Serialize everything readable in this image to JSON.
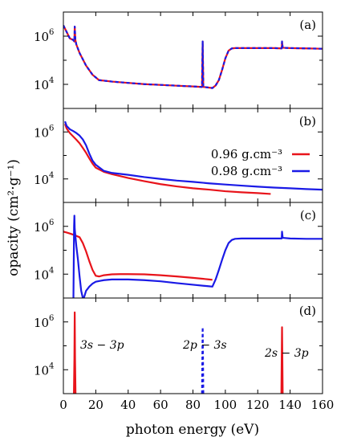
{
  "colors": {
    "red": "#e8141b",
    "blue": "#1a1ae6",
    "axis": "#000000"
  },
  "figure": {
    "ylabel": "opacity (cm²·g⁻¹)",
    "xlabel": "photon energy (eV)",
    "panel_labels": [
      "(a)",
      "(b)",
      "(c)",
      "(d)"
    ],
    "ytick_labels": [
      "10",
      "10"
    ],
    "ytick_exponents": [
      "6",
      "4"
    ],
    "xtick_labels": [
      "0",
      "20",
      "40",
      "60",
      "80",
      "100",
      "120",
      "140",
      "160"
    ],
    "legend": [
      "0.96 g.cm⁻³",
      "0.98 g.cm⁻³"
    ],
    "annotations": [
      "3s − 3p",
      "2p − 3s",
      "2s − 3p"
    ]
  },
  "chart_data": [
    {
      "type": "line",
      "panel": "(a)",
      "yscale": "log",
      "xlim": [
        0,
        160
      ],
      "ylim": [
        1000,
        10000000
      ],
      "grid": false,
      "note": "both densities overlap (red solid with blue dashed overlay)",
      "series": [
        {
          "name": "0.96 g.cm⁻³",
          "color": "red",
          "dashed": false,
          "x": [
            0,
            2,
            4,
            6,
            6.8,
            7,
            7.4,
            8,
            10,
            14,
            18,
            22,
            30,
            40,
            50,
            60,
            70,
            80,
            85.6,
            86,
            86.4,
            88,
            92,
            94,
            96,
            98,
            100,
            102,
            104,
            106,
            110,
            120,
            130,
            134.8,
            135,
            135.4,
            140,
            150,
            160
          ],
          "y": [
            2800000,
            1500000,
            800000,
            700000,
            600000,
            2500000,
            700000,
            450000,
            200000,
            60000,
            25000,
            15000,
            13000,
            11500,
            10200,
            9500,
            8800,
            8200,
            7800,
            600000,
            7800,
            7600,
            7000,
            9000,
            15000,
            40000,
            120000,
            250000,
            310000,
            320000,
            320000,
            320000,
            320000,
            310000,
            600000,
            330000,
            320000,
            310000,
            300000
          ]
        },
        {
          "name": "0.98 g.cm⁻³",
          "color": "blue",
          "dashed": true,
          "x": [
            0,
            2,
            4,
            6,
            6.8,
            7,
            7.4,
            8,
            10,
            14,
            18,
            22,
            30,
            40,
            50,
            60,
            70,
            80,
            85.6,
            86,
            86.4,
            88,
            92,
            94,
            96,
            98,
            100,
            102,
            104,
            106,
            110,
            120,
            130,
            134.8,
            135,
            135.4,
            140,
            150,
            160
          ],
          "y": [
            2800000,
            1500000,
            800000,
            700000,
            600000,
            2500000,
            700000,
            450000,
            200000,
            60000,
            25000,
            15000,
            13000,
            11500,
            10200,
            9500,
            8800,
            8200,
            7800,
            600000,
            7800,
            7600,
            7000,
            9000,
            15000,
            40000,
            120000,
            250000,
            310000,
            320000,
            320000,
            320000,
            320000,
            310000,
            600000,
            330000,
            320000,
            310000,
            300000
          ]
        }
      ]
    },
    {
      "type": "line",
      "panel": "(b)",
      "yscale": "log",
      "xlim": [
        0,
        160
      ],
      "ylim": [
        1000,
        10000000
      ],
      "grid": false,
      "legend_position": "right",
      "series": [
        {
          "name": "0.96 g.cm⁻³",
          "color": "red",
          "dashed": false,
          "x": [
            1,
            2,
            4,
            6,
            8,
            10,
            12,
            14,
            16,
            18,
            20,
            25,
            30,
            40,
            50,
            60,
            70,
            80,
            90,
            100,
            110,
            120,
            128
          ],
          "y": [
            2200000,
            1400000,
            900000,
            650000,
            470000,
            330000,
            210000,
            130000,
            75000,
            45000,
            30000,
            20000,
            16000,
            11000,
            8000,
            6000,
            4800,
            4000,
            3500,
            3000,
            2700,
            2500,
            2300
          ]
        },
        {
          "name": "0.98 g.cm⁻³",
          "color": "blue",
          "dashed": false,
          "x": [
            1,
            2,
            4,
            6,
            8,
            10,
            12,
            14,
            16,
            18,
            20,
            25,
            30,
            40,
            50,
            60,
            70,
            80,
            90,
            100,
            110,
            120,
            130,
            140,
            150,
            160
          ],
          "y": [
            2800000,
            1800000,
            1300000,
            1100000,
            900000,
            700000,
            480000,
            270000,
            120000,
            60000,
            40000,
            22000,
            18000,
            15000,
            12000,
            10000,
            8500,
            7500,
            6500,
            5800,
            5200,
            4700,
            4300,
            4000,
            3700,
            3500
          ]
        }
      ]
    },
    {
      "type": "line",
      "panel": "(c)",
      "yscale": "log",
      "xlim": [
        0,
        160
      ],
      "ylim": [
        1000,
        10000000
      ],
      "grid": false,
      "series": [
        {
          "name": "0.96 g.cm⁻³",
          "color": "red",
          "dashed": false,
          "x": [
            0,
            2,
            4,
            6,
            8,
            10,
            12,
            14,
            16,
            18,
            20,
            22,
            25,
            30,
            35,
            40,
            50,
            60,
            70,
            80,
            90,
            92
          ],
          "y": [
            600000,
            550000,
            500000,
            450000,
            400000,
            350000,
            200000,
            90000,
            35000,
            15000,
            8500,
            8000,
            9000,
            9800,
            10000,
            10000,
            9800,
            9000,
            8000,
            7000,
            6000,
            5800
          ]
        },
        {
          "name": "0.98 g.cm⁻³",
          "color": "blue",
          "dashed": false,
          "x": [
            6.2,
            6.4,
            6.6,
            6.8,
            7,
            7.4,
            8,
            9,
            10,
            11,
            12,
            12.6,
            13,
            14,
            16,
            18,
            20,
            25,
            30,
            40,
            50,
            60,
            70,
            80,
            90,
            92,
            94,
            96,
            98,
            100,
            102,
            104,
            106,
            110,
            120,
            130,
            134.8,
            135,
            135.4,
            140,
            150,
            160
          ],
          "y": [
            1000,
            30000,
            1000000,
            2800000,
            800000,
            400000,
            150000,
            40000,
            8000,
            2000,
            1000,
            1000,
            1200,
            2000,
            3000,
            4000,
            4800,
            5600,
            6000,
            6000,
            5600,
            5000,
            4200,
            3600,
            3100,
            3000,
            6000,
            15000,
            40000,
            100000,
            200000,
            270000,
            300000,
            310000,
            310000,
            310000,
            310000,
            600000,
            330000,
            310000,
            300000,
            300000
          ]
        }
      ]
    },
    {
      "type": "line",
      "panel": "(d)",
      "yscale": "log",
      "xlim": [
        0,
        160
      ],
      "ylim": [
        1000,
        10000000
      ],
      "grid": false,
      "note": "narrow lines only; both densities overlap",
      "series": [
        {
          "name": "0.96 g.cm⁻³",
          "color": "red",
          "dashed": false,
          "x": [
            6.5,
            6.8,
            7,
            7.2,
            7.5
          ],
          "y": [
            1000,
            30000,
            2500000,
            30000,
            1000
          ]
        },
        {
          "name": "0.98 g.cm⁻³",
          "color": "blue",
          "dashed": true,
          "x": [
            85.6,
            85.8,
            86,
            86.2,
            86.4
          ],
          "y": [
            1000,
            30000,
            600000,
            30000,
            1000
          ]
        },
        {
          "name": "0.96 g.cm⁻³",
          "color": "red",
          "dashed": false,
          "x": [
            134.6,
            134.8,
            135,
            135.2,
            135.4
          ],
          "y": [
            1000,
            30000,
            600000,
            30000,
            1000
          ]
        }
      ]
    }
  ]
}
